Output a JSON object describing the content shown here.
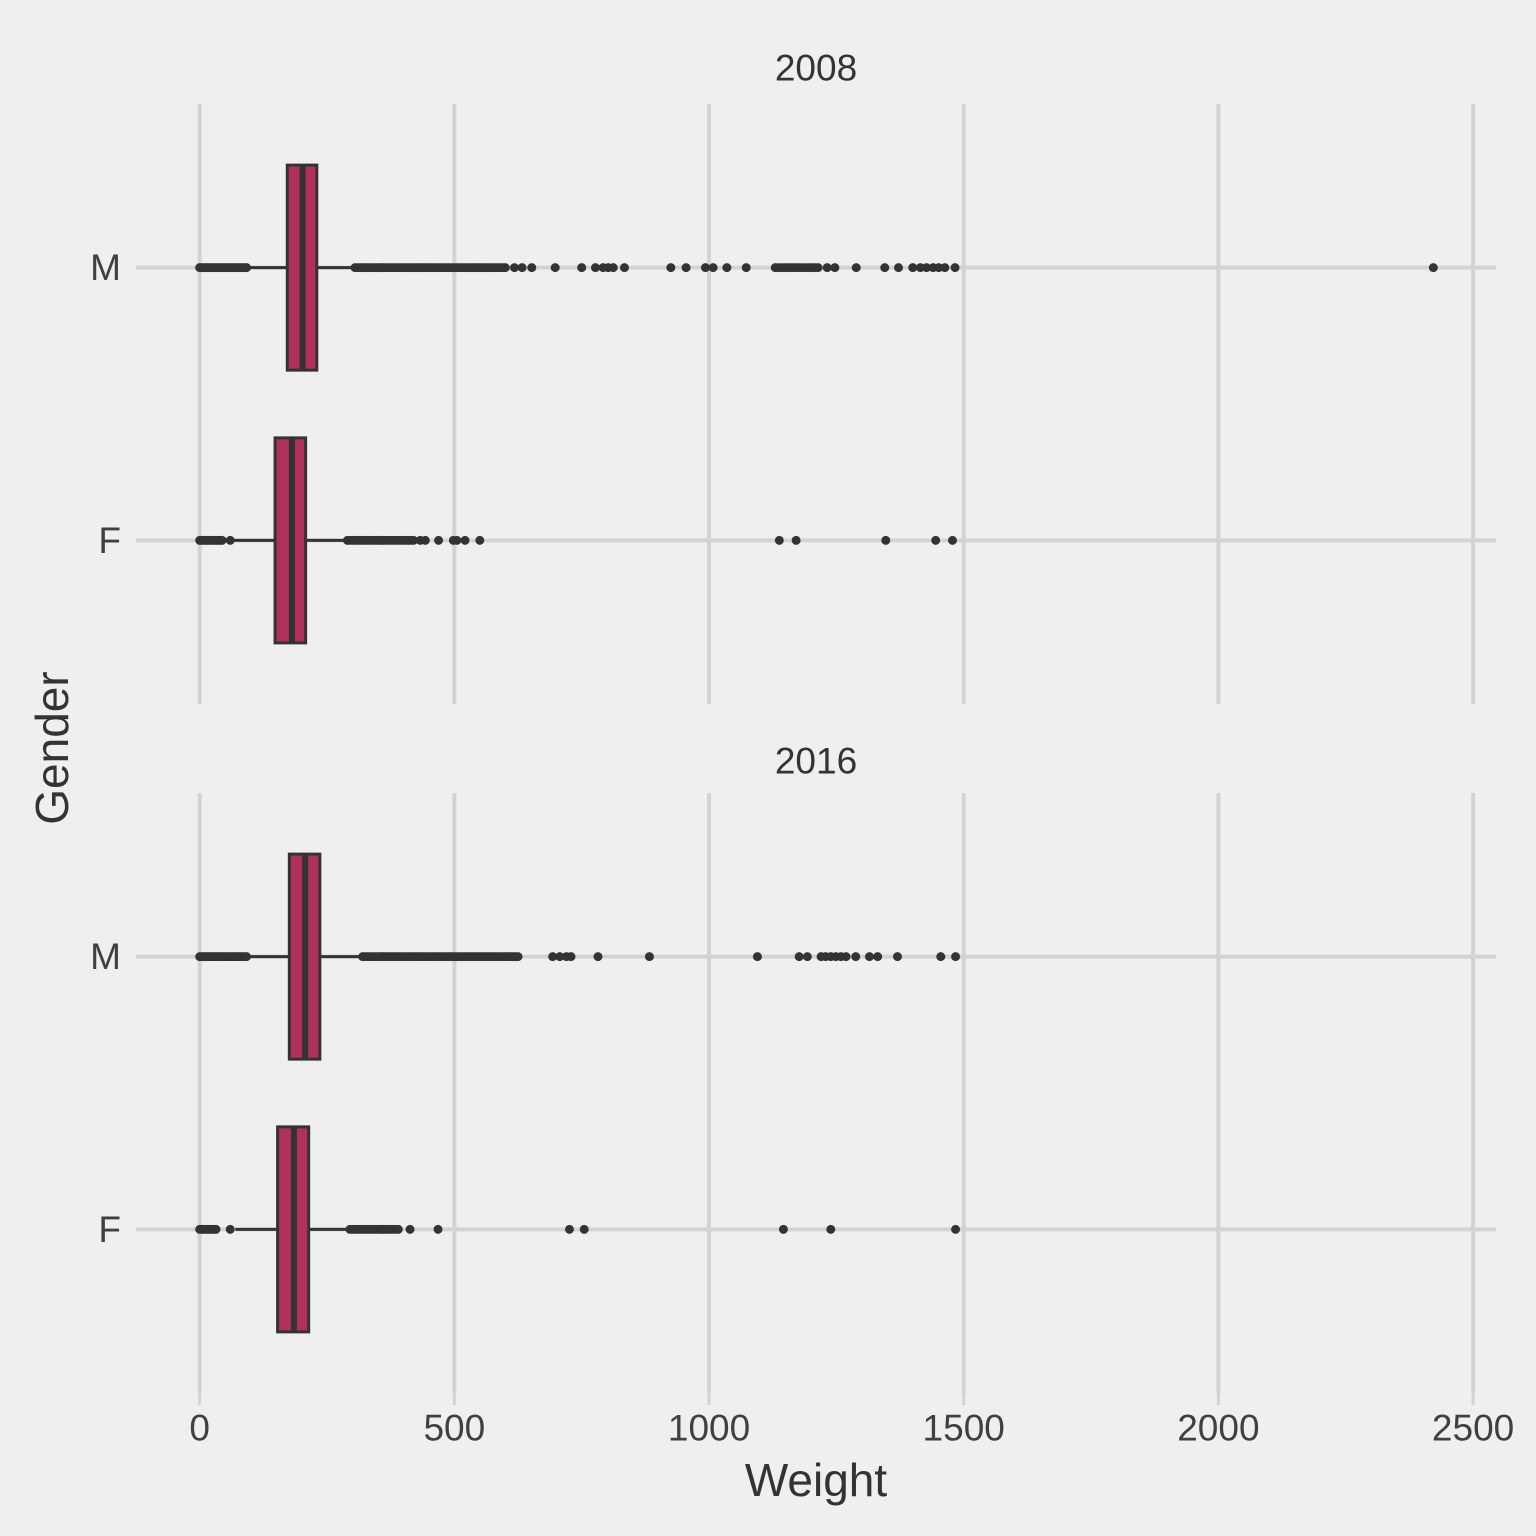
{
  "chart_data": {
    "type": "boxplot",
    "orientation": "horizontal",
    "title": "",
    "xlabel": "Weight",
    "ylabel": "Gender",
    "x_ticks": [
      0,
      500,
      1000,
      1500,
      2000,
      2500
    ],
    "xlim": [
      -125,
      2545
    ],
    "grid": true,
    "categories": [
      "M",
      "F"
    ],
    "facets": [
      {
        "label": "2008",
        "boxes": [
          {
            "gender": "M",
            "whisker_low": 93,
            "q1": 172,
            "median": 202,
            "q3": 230,
            "whisker_high": 302,
            "outliers": [
              0,
              4,
              8,
              12,
              16,
              20,
              24,
              28,
              32,
              36,
              40,
              44,
              48,
              52,
              56,
              60,
              64,
              68,
              72,
              76,
              80,
              84,
              88,
              92,
              305,
              310,
              315,
              320,
              325,
              330,
              335,
              340,
              345,
              350,
              355,
              360,
              365,
              370,
              375,
              380,
              385,
              390,
              395,
              400,
              405,
              410,
              415,
              420,
              425,
              430,
              435,
              440,
              445,
              450,
              455,
              460,
              465,
              470,
              475,
              480,
              485,
              490,
              495,
              500,
              505,
              510,
              515,
              520,
              525,
              530,
              535,
              540,
              545,
              550,
              555,
              560,
              565,
              570,
              575,
              580,
              585,
              590,
              595,
              600,
              618,
              633,
              652,
              698,
              750,
              777,
              792,
              802,
              812,
              834,
              925,
              955,
              993,
              1008,
              1035,
              1073,
              1130,
              1136,
              1142,
              1148,
              1154,
              1160,
              1166,
              1172,
              1178,
              1184,
              1190,
              1196,
              1202,
              1208,
              1214,
              1232,
              1247,
              1289,
              1345,
              1372,
              1400,
              1415,
              1427,
              1440,
              1451,
              1463,
              1483,
              2422
            ]
          },
          {
            "gender": "F",
            "whisker_low": 66,
            "q1": 148,
            "median": 181,
            "q3": 208,
            "whisker_high": 286,
            "outliers": [
              0,
              4,
              8,
              12,
              16,
              20,
              24,
              28,
              32,
              36,
              40,
              44,
              60,
              290,
              295,
              300,
              305,
              310,
              315,
              320,
              325,
              330,
              335,
              340,
              345,
              350,
              355,
              360,
              365,
              370,
              375,
              380,
              385,
              390,
              395,
              400,
              405,
              410,
              415,
              420,
              433,
              443,
              469,
              498,
              505,
              521,
              550,
              1138,
              1171,
              1347,
              1445,
              1478
            ]
          }
        ]
      },
      {
        "label": "2016",
        "boxes": [
          {
            "gender": "M",
            "whisker_low": 96,
            "q1": 176,
            "median": 207,
            "q3": 236,
            "whisker_high": 318,
            "outliers": [
              0,
              4,
              8,
              12,
              16,
              20,
              24,
              28,
              32,
              36,
              40,
              44,
              48,
              52,
              56,
              60,
              64,
              68,
              72,
              76,
              80,
              84,
              88,
              92,
              320,
              325,
              330,
              335,
              340,
              345,
              350,
              355,
              360,
              365,
              370,
              375,
              380,
              385,
              390,
              395,
              400,
              405,
              410,
              415,
              420,
              425,
              430,
              435,
              440,
              445,
              450,
              455,
              460,
              465,
              470,
              475,
              480,
              485,
              490,
              495,
              500,
              505,
              510,
              515,
              520,
              525,
              530,
              535,
              540,
              545,
              550,
              555,
              560,
              565,
              570,
              575,
              580,
              585,
              590,
              595,
              600,
              605,
              610,
              615,
              620,
              625,
              693,
              707,
              720,
              729,
              782,
              883,
              1095,
              1177,
              1193,
              1220,
              1229,
              1239,
              1249,
              1259,
              1269,
              1288,
              1315,
              1331,
              1370,
              1455,
              1484
            ]
          },
          {
            "gender": "F",
            "whisker_low": 70,
            "q1": 153,
            "median": 185,
            "q3": 214,
            "whisker_high": 294,
            "outliers": [
              0,
              4,
              8,
              12,
              16,
              20,
              24,
              28,
              32,
              60,
              295,
              300,
              305,
              310,
              315,
              320,
              325,
              330,
              335,
              340,
              345,
              350,
              355,
              360,
              365,
              370,
              375,
              380,
              385,
              390,
              413,
              468,
              726,
              755,
              1146,
              1239,
              1484
            ]
          }
        ]
      }
    ],
    "style": {
      "box_fill": "#B2315C",
      "box_stroke": "#333333",
      "median_color": "#333333",
      "whisker_color": "#333333",
      "point_color": "#333333",
      "grid_color": "#D3D3D3",
      "background": "#EFEFEF",
      "tick_text_color": "#404040",
      "title_text_color": "#333333"
    }
  }
}
